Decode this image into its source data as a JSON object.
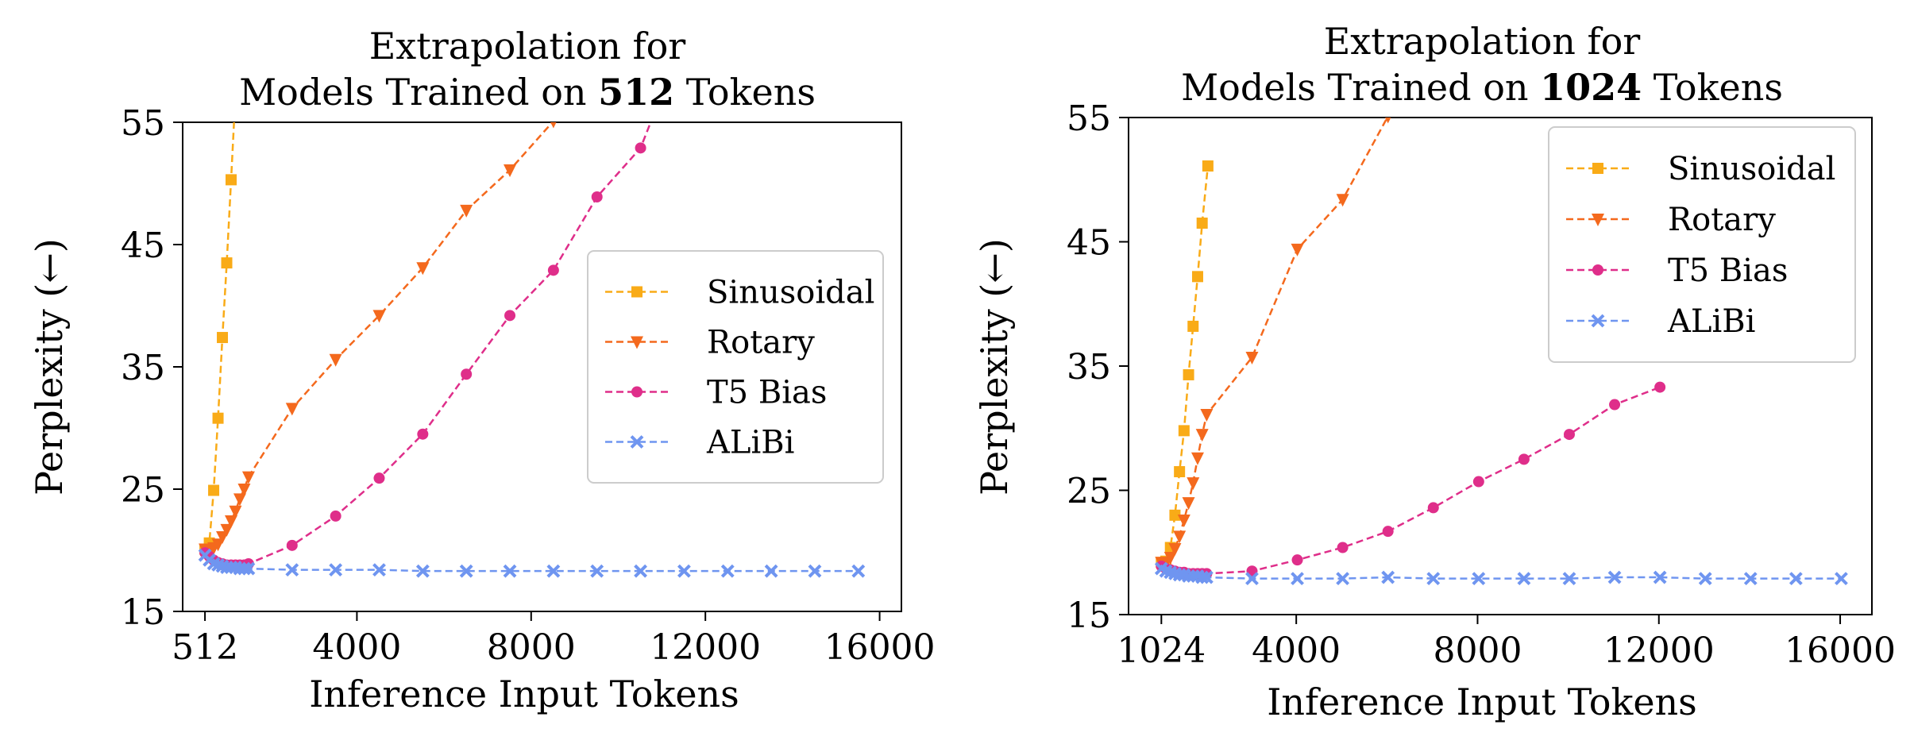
{
  "colors": {
    "sinusoidal": "#F9AB17",
    "rotary": "#F4691D",
    "t5": "#DF2E8A",
    "alibi": "#6F95F0"
  },
  "chart_data": [
    {
      "type": "line",
      "title_line1": "Extrapolation for",
      "title_line2_prefix": "Models Trained on ",
      "title_bold": "512",
      "title_line2_suffix": " Tokens",
      "xlabel": "Inference Input Tokens",
      "ylabel": "Perplexity (←)",
      "xlim": [
        0,
        16500
      ],
      "ylim": [
        15,
        55
      ],
      "xticks": [
        512,
        4000,
        8000,
        12000,
        16000
      ],
      "xtick_labels": [
        "512",
        "4000",
        "8000",
        "12000",
        "16000"
      ],
      "yticks": [
        15,
        25,
        35,
        45,
        55
      ],
      "yticks_labels": [
        "15",
        "25",
        "35",
        "45",
        "55"
      ],
      "legend_position": "center-right",
      "series": [
        {
          "name": "Sinusoidal",
          "key": "sinusoidal",
          "marker": "square",
          "x": [
            512,
            612,
            712,
            812,
            912,
            1012,
            1112,
            1250
          ],
          "y": [
            20.1,
            20.6,
            24.9,
            30.8,
            37.4,
            43.5,
            50.3,
            60
          ]
        },
        {
          "name": "Rotary",
          "key": "rotary",
          "marker": "triangle",
          "x": [
            512,
            612,
            712,
            812,
            912,
            1012,
            1112,
            1212,
            1312,
            1412,
            1512,
            2512,
            3512,
            4512,
            5512,
            6512,
            7512,
            8512,
            9000
          ],
          "y": [
            20.1,
            20.0,
            20.2,
            20.5,
            21.1,
            21.7,
            22.4,
            23.2,
            24.2,
            25.0,
            26.0,
            31.6,
            35.6,
            39.2,
            43.1,
            47.8,
            51.1,
            55.1,
            58
          ]
        },
        {
          "name": "T5 Bias",
          "key": "t5",
          "marker": "circle",
          "x": [
            512,
            612,
            712,
            812,
            912,
            1012,
            1112,
            1212,
            1312,
            1412,
            1512,
            2512,
            3512,
            4512,
            5512,
            6512,
            7512,
            8512,
            9512,
            10512,
            10800
          ],
          "y": [
            19.8,
            19.5,
            19.2,
            19.0,
            18.9,
            18.8,
            18.8,
            18.8,
            18.8,
            18.8,
            18.9,
            20.4,
            22.8,
            25.9,
            29.5,
            34.4,
            39.2,
            42.9,
            48.9,
            52.9,
            55.5
          ]
        },
        {
          "name": "ALiBi",
          "key": "alibi",
          "marker": "x",
          "x": [
            512,
            612,
            712,
            812,
            912,
            1012,
            1112,
            1212,
            1312,
            1412,
            1512,
            2512,
            3512,
            4512,
            5512,
            6512,
            7512,
            8512,
            9512,
            10512,
            11512,
            12512,
            13512,
            14512,
            15512
          ],
          "y": [
            19.6,
            19.2,
            18.9,
            18.8,
            18.7,
            18.6,
            18.6,
            18.6,
            18.5,
            18.5,
            18.5,
            18.4,
            18.4,
            18.4,
            18.3,
            18.3,
            18.3,
            18.3,
            18.3,
            18.3,
            18.3,
            18.3,
            18.3,
            18.3,
            18.3
          ]
        }
      ]
    },
    {
      "type": "line",
      "title_line1": "Extrapolation for",
      "title_line2_prefix": "Models Trained on ",
      "title_bold": "1024",
      "title_line2_suffix": " Tokens",
      "xlabel": "Inference Input Tokens",
      "ylabel": "Perplexity (←)",
      "xlim": [
        300,
        16700
      ],
      "ylim": [
        15,
        55
      ],
      "xticks": [
        1024,
        4000,
        8000,
        12000,
        16000
      ],
      "xtick_labels": [
        "1024",
        "4000",
        "8000",
        "12000",
        "16000"
      ],
      "yticks": [
        15,
        25,
        35,
        45,
        55
      ],
      "yticks_labels": [
        "15",
        "25",
        "35",
        "45",
        "55"
      ],
      "legend_position": "top-right",
      "series": [
        {
          "name": "Sinusoidal",
          "key": "sinusoidal",
          "marker": "square",
          "x": [
            1024,
            1124,
            1224,
            1324,
            1424,
            1524,
            1624,
            1724,
            1824,
            1924,
            2050
          ],
          "y": [
            19.2,
            19.3,
            20.4,
            23.0,
            26.5,
            29.8,
            34.3,
            38.2,
            42.2,
            46.5,
            51.1
          ]
        },
        {
          "name": "Rotary",
          "key": "rotary",
          "marker": "triangle",
          "x": [
            1024,
            1124,
            1224,
            1324,
            1424,
            1524,
            1624,
            1724,
            1824,
            1924,
            2024,
            3024,
            4024,
            5024,
            6024
          ],
          "y": [
            19.2,
            19.2,
            19.6,
            20.3,
            21.3,
            22.6,
            24.0,
            25.6,
            27.6,
            29.5,
            31.1,
            35.7,
            44.4,
            48.4,
            55.1
          ]
        },
        {
          "name": "T5 Bias",
          "key": "t5",
          "marker": "circle",
          "x": [
            1024,
            1124,
            1224,
            1324,
            1424,
            1524,
            1624,
            1724,
            1824,
            1924,
            2024,
            3024,
            4024,
            5024,
            6024,
            7024,
            8024,
            9024,
            10024,
            11024,
            12024
          ],
          "y": [
            18.9,
            18.7,
            18.6,
            18.5,
            18.4,
            18.4,
            18.3,
            18.3,
            18.3,
            18.3,
            18.3,
            18.5,
            19.4,
            20.4,
            21.7,
            23.6,
            25.7,
            27.5,
            29.5,
            31.9,
            33.3
          ]
        },
        {
          "name": "ALiBi",
          "key": "alibi",
          "marker": "x",
          "x": [
            1024,
            1124,
            1224,
            1324,
            1424,
            1524,
            1624,
            1724,
            1824,
            1924,
            2024,
            3024,
            4024,
            5024,
            6024,
            7024,
            8024,
            9024,
            10024,
            11024,
            12024,
            13024,
            14024,
            15024,
            16024
          ],
          "y": [
            18.7,
            18.5,
            18.4,
            18.3,
            18.2,
            18.2,
            18.1,
            18.1,
            18.1,
            18.0,
            18.0,
            17.9,
            17.9,
            17.9,
            18.0,
            17.9,
            17.9,
            17.9,
            17.9,
            18.0,
            18.0,
            17.9,
            17.9,
            17.9,
            17.9
          ]
        }
      ]
    }
  ]
}
